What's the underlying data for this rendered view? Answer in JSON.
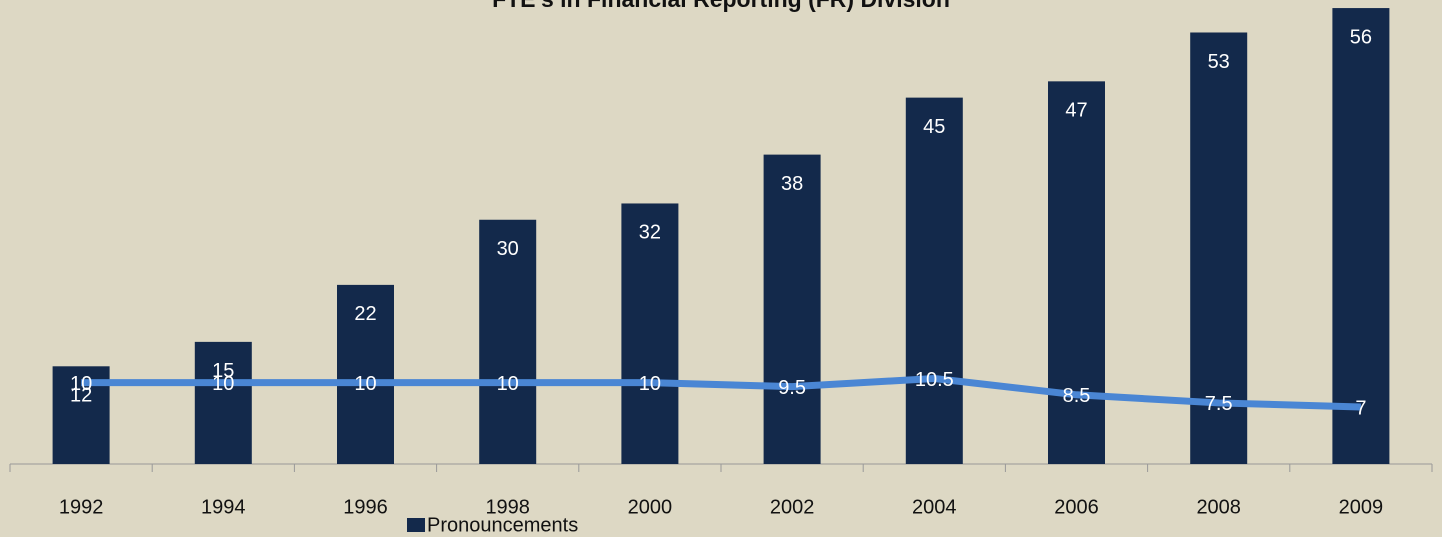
{
  "chart_data": {
    "type": "bar",
    "title": "FTE's in Financial Reporting (FR) Division",
    "categories": [
      "1992",
      "1994",
      "1996",
      "1998",
      "2000",
      "2002",
      "2004",
      "2006",
      "2008",
      "2009"
    ],
    "series": [
      {
        "name": "Pronouncements",
        "type": "bar",
        "color": "#13294b",
        "values": [
          12,
          15,
          22,
          30,
          32,
          38,
          45,
          47,
          53,
          56
        ]
      },
      {
        "type": "line",
        "color": "#4a86d4",
        "values": [
          10,
          10,
          10,
          10,
          10,
          9.5,
          10.5,
          8.5,
          7.5,
          7
        ]
      }
    ],
    "ylim": [
      0,
      60
    ],
    "legend": "bottom"
  }
}
